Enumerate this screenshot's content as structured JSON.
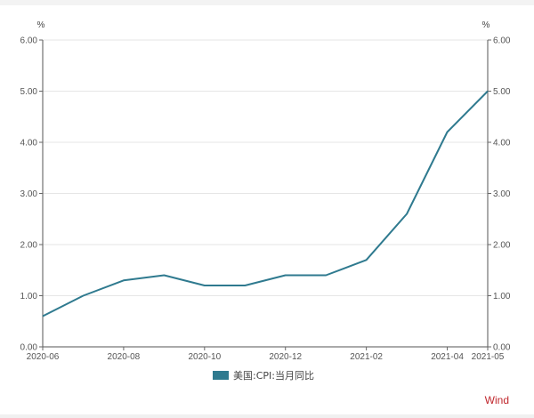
{
  "chart_data": {
    "type": "line",
    "y_unit_left": "%",
    "y_unit_right": "%",
    "x": [
      "2020-06",
      "2020-07",
      "2020-08",
      "2020-09",
      "2020-10",
      "2020-11",
      "2020-12",
      "2021-01",
      "2021-02",
      "2021-03",
      "2021-04",
      "2021-05"
    ],
    "x_tick_labels": [
      "2020-06",
      "2020-08",
      "2020-10",
      "2020-12",
      "2021-02",
      "2021-04",
      "2021-05"
    ],
    "series": [
      {
        "name": "美国:CPI:当月同比",
        "color": "#2f7a8f",
        "values": [
          0.6,
          1.0,
          1.3,
          1.4,
          1.2,
          1.2,
          1.4,
          1.4,
          1.7,
          2.6,
          4.2,
          5.0
        ]
      }
    ],
    "y_ticks": [
      "0.00",
      "1.00",
      "2.00",
      "3.00",
      "4.00",
      "5.00",
      "6.00"
    ],
    "ylim": [
      0,
      6
    ],
    "grid": "horizontal",
    "legend_position": "bottom-center"
  },
  "watermark": "Wind"
}
